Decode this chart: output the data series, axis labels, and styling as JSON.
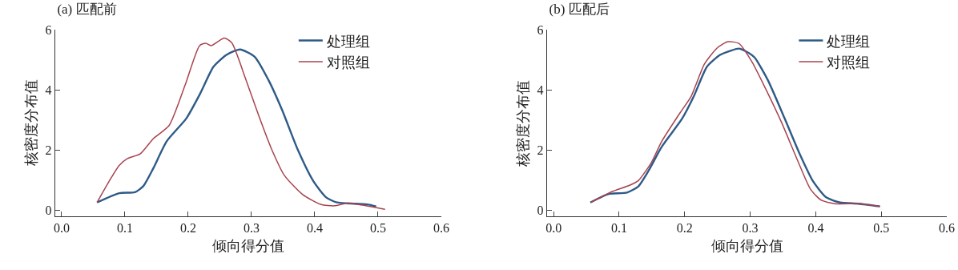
{
  "chart_data": [
    {
      "type": "line",
      "title": "(a) 匹配前",
      "xlabel": "倾向得分值",
      "ylabel": "核密度分布值",
      "xlim": [
        -0.01,
        0.6
      ],
      "ylim": [
        -0.2,
        6
      ],
      "xticks": [
        {
          "value": 0,
          "label": "0.0"
        },
        0.1,
        0.2,
        0.3,
        0.4,
        0.5,
        0.6
      ],
      "yticks": [
        0,
        2,
        4,
        6
      ],
      "grid": false,
      "legend": "top right",
      "marker": "none",
      "line_style": "solid",
      "series": [
        {
          "name": "处理组",
          "color": "#2e5a87",
          "x": [
            0.056,
            0.091,
            0.116,
            0.129,
            0.145,
            0.166,
            0.197,
            0.219,
            0.24,
            0.261,
            0.282,
            0.305,
            0.327,
            0.348,
            0.373,
            0.398,
            0.418,
            0.435,
            0.464,
            0.485,
            0.497
          ],
          "values": [
            0.26,
            0.57,
            0.6,
            0.8,
            1.4,
            2.29,
            3.05,
            3.88,
            4.77,
            5.17,
            5.34,
            5.1,
            4.32,
            3.35,
            2.02,
            0.96,
            0.43,
            0.26,
            0.22,
            0.19,
            0.13
          ]
        },
        {
          "name": "对照组",
          "color": "#a8434f",
          "x": [
            0.056,
            0.075,
            0.091,
            0.104,
            0.124,
            0.145,
            0.17,
            0.195,
            0.218,
            0.228,
            0.236,
            0.257,
            0.269,
            0.29,
            0.311,
            0.331,
            0.352,
            0.381,
            0.41,
            0.431,
            0.452,
            0.476,
            0.511
          ],
          "values": [
            0.26,
            0.96,
            1.49,
            1.72,
            1.87,
            2.38,
            2.82,
            4.15,
            5.47,
            5.55,
            5.47,
            5.72,
            5.56,
            4.41,
            3.17,
            2.07,
            1.16,
            0.52,
            0.19,
            0.15,
            0.24,
            0.17,
            0.03
          ]
        }
      ]
    },
    {
      "type": "line",
      "title": "(b) 匹配后",
      "xlabel": "倾向得分值",
      "ylabel": "核密度分布值",
      "xlim": [
        -0.01,
        0.6
      ],
      "ylim": [
        -0.2,
        6
      ],
      "xticks": [
        {
          "value": 0,
          "label": "0.0"
        },
        0.1,
        0.2,
        0.3,
        0.4,
        0.5,
        0.6
      ],
      "yticks": [
        0,
        2,
        4,
        6
      ],
      "grid": false,
      "legend": "top right",
      "marker": "none",
      "line_style": "solid",
      "series": [
        {
          "name": "处理组",
          "color": "#2e5a87",
          "x": [
            0.056,
            0.084,
            0.112,
            0.129,
            0.145,
            0.165,
            0.196,
            0.214,
            0.234,
            0.254,
            0.27,
            0.283,
            0.299,
            0.307,
            0.327,
            0.352,
            0.376,
            0.396,
            0.416,
            0.437,
            0.465,
            0.498
          ],
          "values": [
            0.26,
            0.54,
            0.59,
            0.79,
            1.32,
            2.11,
            3.04,
            3.79,
            4.77,
            5.16,
            5.3,
            5.37,
            5.21,
            5.07,
            4.32,
            3.08,
            1.85,
            0.96,
            0.43,
            0.26,
            0.22,
            0.13
          ]
        },
        {
          "name": "对照组",
          "color": "#a8434f",
          "x": [
            0.057,
            0.088,
            0.116,
            0.129,
            0.149,
            0.165,
            0.193,
            0.21,
            0.23,
            0.25,
            0.266,
            0.283,
            0.303,
            0.323,
            0.348,
            0.372,
            0.392,
            0.408,
            0.429,
            0.465,
            0.498
          ],
          "values": [
            0.26,
            0.61,
            0.83,
            0.98,
            1.58,
            2.29,
            3.24,
            3.79,
            4.85,
            5.4,
            5.6,
            5.54,
            4.92,
            4.06,
            2.91,
            1.67,
            0.7,
            0.34,
            0.22,
            0.22,
            0.13
          ]
        }
      ]
    }
  ]
}
